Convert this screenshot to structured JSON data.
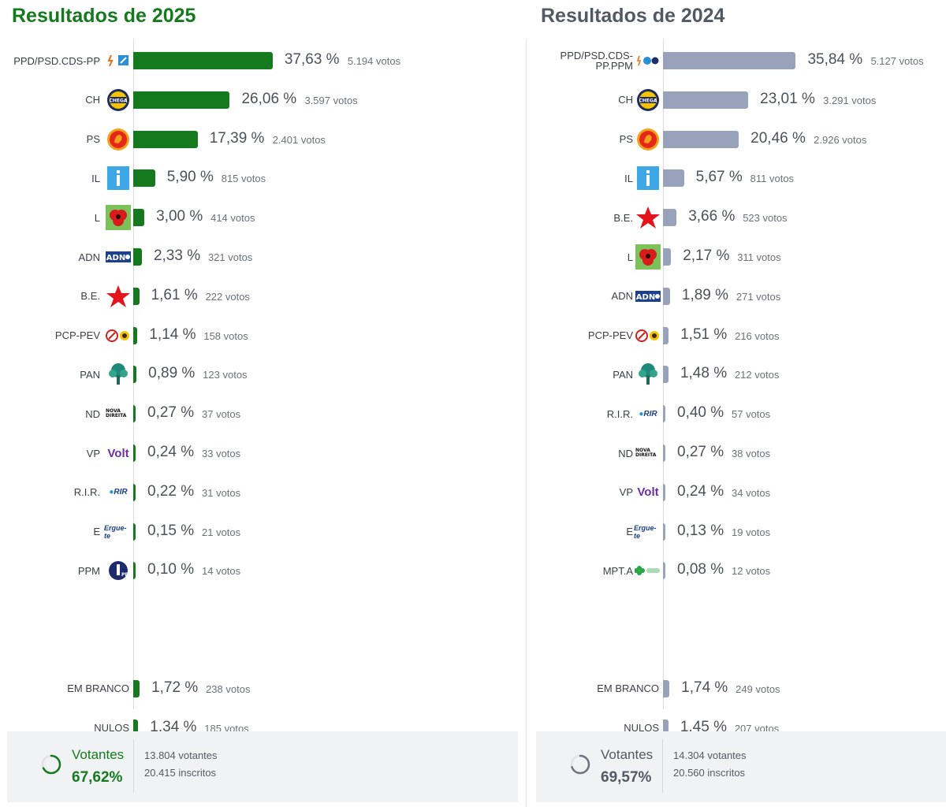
{
  "panels": [
    {
      "id": "panel-2025",
      "title": "Resultados de 2025",
      "chart_data": {
        "type": "bar",
        "title": "Resultados de 2025",
        "orientation": "horizontal",
        "unit": "%",
        "parties": [
          {
            "name": "PPD/PSD.CDS-PP",
            "pct": 37.63,
            "pct_label": "37,63 %",
            "votes_label": "5.194 votos",
            "logo": "ppd-cds-icon"
          },
          {
            "name": "CH",
            "pct": 26.06,
            "pct_label": "26,06 %",
            "votes_label": "3.597 votos",
            "logo": "chega-icon"
          },
          {
            "name": "PS",
            "pct": 17.39,
            "pct_label": "17,39 %",
            "votes_label": "2.401 votos",
            "logo": "ps-fist-icon"
          },
          {
            "name": "IL",
            "pct": 5.9,
            "pct_label": "5,90 %",
            "votes_label": "815 votos",
            "logo": "il-icon"
          },
          {
            "name": "L",
            "pct": 3.0,
            "pct_label": "3,00 %",
            "votes_label": "414 votos",
            "logo": "livre-poppy-icon"
          },
          {
            "name": "ADN",
            "pct": 2.33,
            "pct_label": "2,33 %",
            "votes_label": "321 votos",
            "logo": "adn-icon"
          },
          {
            "name": "B.E.",
            "pct": 1.61,
            "pct_label": "1,61 %",
            "votes_label": "222 votos",
            "logo": "be-star-icon"
          },
          {
            "name": "PCP-PEV",
            "pct": 1.14,
            "pct_label": "1,14 %",
            "votes_label": "158 votos",
            "logo": "pcp-pev-icon"
          },
          {
            "name": "PAN",
            "pct": 0.89,
            "pct_label": "0,89 %",
            "votes_label": "123 votos",
            "logo": "pan-tree-icon"
          },
          {
            "name": "ND",
            "pct": 0.27,
            "pct_label": "0,27 %",
            "votes_label": "37 votos",
            "logo": "nova-direita-icon",
            "logo_text": "NOVA DIREITA"
          },
          {
            "name": "VP",
            "pct": 0.24,
            "pct_label": "0,24 %",
            "votes_label": "33 votos",
            "logo": "volt-icon",
            "logo_text": "Volt"
          },
          {
            "name": "R.I.R.",
            "pct": 0.22,
            "pct_label": "0,22 %",
            "votes_label": "31 votos",
            "logo": "rir-icon",
            "logo_text": "RIR"
          },
          {
            "name": "E",
            "pct": 0.15,
            "pct_label": "0,15 %",
            "votes_label": "21 votos",
            "logo": "ergue-te-icon",
            "logo_text": "Ergue-te"
          },
          {
            "name": "PPM",
            "pct": 0.1,
            "pct_label": "0,10 %",
            "votes_label": "14 votos",
            "logo": "ppm-icon"
          }
        ],
        "extra": [
          {
            "name": "EM BRANCO",
            "pct": 1.72,
            "pct_label": "1,72 %",
            "votes_label": "238 votos"
          },
          {
            "name": "NULOS",
            "pct": 1.34,
            "pct_label": "1,34 %",
            "votes_label": "185 votos"
          }
        ]
      },
      "turnout": {
        "label": "Votantes",
        "value": "67,62%",
        "fraction": 0.6762,
        "voters": "13.804 votantes",
        "registered": "20.415 inscritos"
      }
    },
    {
      "id": "panel-2024",
      "title": "Resultados de 2024",
      "chart_data": {
        "type": "bar",
        "title": "Resultados de 2024",
        "orientation": "horizontal",
        "unit": "%",
        "parties": [
          {
            "name": "PPD/PSD.CDS-PP.PPM",
            "pct": 35.84,
            "pct_label": "35,84 %",
            "votes_label": "5.127 votos",
            "logo": "ppd-cds-ppm-icon"
          },
          {
            "name": "CH",
            "pct": 23.01,
            "pct_label": "23,01 %",
            "votes_label": "3.291 votos",
            "logo": "chega-icon"
          },
          {
            "name": "PS",
            "pct": 20.46,
            "pct_label": "20,46 %",
            "votes_label": "2.926 votos",
            "logo": "ps-fist-icon"
          },
          {
            "name": "IL",
            "pct": 5.67,
            "pct_label": "5,67 %",
            "votes_label": "811 votos",
            "logo": "il-icon"
          },
          {
            "name": "B.E.",
            "pct": 3.66,
            "pct_label": "3,66 %",
            "votes_label": "523 votos",
            "logo": "be-star-icon"
          },
          {
            "name": "L",
            "pct": 2.17,
            "pct_label": "2,17 %",
            "votes_label": "311 votos",
            "logo": "livre-poppy-icon"
          },
          {
            "name": "ADN",
            "pct": 1.89,
            "pct_label": "1,89 %",
            "votes_label": "271 votos",
            "logo": "adn-icon"
          },
          {
            "name": "PCP-PEV",
            "pct": 1.51,
            "pct_label": "1,51 %",
            "votes_label": "216 votos",
            "logo": "pcp-pev-icon"
          },
          {
            "name": "PAN",
            "pct": 1.48,
            "pct_label": "1,48 %",
            "votes_label": "212 votos",
            "logo": "pan-tree-icon"
          },
          {
            "name": "R.I.R.",
            "pct": 0.4,
            "pct_label": "0,40 %",
            "votes_label": "57 votos",
            "logo": "rir-icon",
            "logo_text": "RIR"
          },
          {
            "name": "ND",
            "pct": 0.27,
            "pct_label": "0,27 %",
            "votes_label": "38 votos",
            "logo": "nova-direita-icon",
            "logo_text": "NOVA DIREITA"
          },
          {
            "name": "VP",
            "pct": 0.24,
            "pct_label": "0,24 %",
            "votes_label": "34 votos",
            "logo": "volt-icon",
            "logo_text": "Volt"
          },
          {
            "name": "E",
            "pct": 0.13,
            "pct_label": "0,13 %",
            "votes_label": "19 votos",
            "logo": "ergue-te-icon",
            "logo_text": "Ergue-te"
          },
          {
            "name": "MPT.A",
            "pct": 0.08,
            "pct_label": "0,08 %",
            "votes_label": "12 votos",
            "logo": "mpt-clover-icon"
          }
        ],
        "extra": [
          {
            "name": "EM BRANCO",
            "pct": 1.74,
            "pct_label": "1,74 %",
            "votes_label": "249 votos"
          },
          {
            "name": "NULOS",
            "pct": 1.45,
            "pct_label": "1,45 %",
            "votes_label": "207 votos"
          }
        ]
      },
      "turnout": {
        "label": "Votantes",
        "value": "69,57%",
        "fraction": 0.6957,
        "voters": "14.304 votantes",
        "registered": "20.560 inscritos"
      }
    }
  ],
  "colors": {
    "bar_2025": "#147a1d",
    "bar_2024": "#98a2bb",
    "title_2025": "#147a1d",
    "title_2024": "#525965"
  }
}
